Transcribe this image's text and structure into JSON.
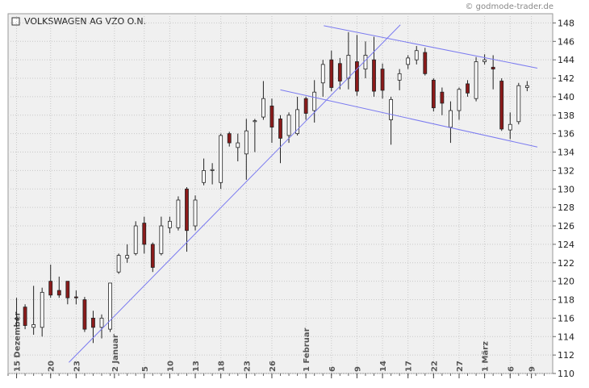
{
  "chart_data": {
    "type": "candlestick",
    "title": "VOLKSWAGEN AG VZO O.N.",
    "source": "© godmode-trader.de",
    "ohlc": [
      [
        116,
        118.2,
        115,
        116
      ],
      [
        117.2,
        117.5,
        114.8,
        115.2
      ],
      [
        115,
        119.5,
        114.2,
        115.3
      ],
      [
        115,
        119.3,
        114,
        118.8
      ],
      [
        120,
        121.8,
        118.2,
        118.5
      ],
      [
        119,
        120.5,
        118.2,
        118.5
      ],
      [
        120,
        120,
        117.5,
        118.2
      ],
      [
        118.3,
        119,
        117.5,
        118.2
      ],
      [
        118,
        118.3,
        114.5,
        114.8
      ],
      [
        116,
        116.8,
        113.3,
        115
      ],
      [
        115,
        116.4,
        113.8,
        116
      ],
      [
        114.8,
        119.8,
        114.5,
        119.8
      ],
      [
        121,
        123,
        120.8,
        122.8
      ],
      [
        122.5,
        124,
        122,
        122.8
      ],
      [
        123,
        126.5,
        122.8,
        126
      ],
      [
        126.3,
        127,
        123,
        124
      ],
      [
        124,
        124.2,
        121,
        121.5
      ],
      [
        123,
        127,
        122.8,
        126
      ],
      [
        125.8,
        127,
        125.2,
        126.5
      ],
      [
        125.8,
        129.2,
        125.5,
        128.8
      ],
      [
        130,
        130.2,
        123.2,
        125.5
      ],
      [
        126,
        129.3,
        125.5,
        128.8
      ],
      [
        130.7,
        133.3,
        130.4,
        132
      ],
      [
        132,
        132.8,
        130.5,
        132.1
      ],
      [
        130.7,
        136,
        130,
        135.8
      ],
      [
        136,
        136.2,
        134.6,
        135
      ],
      [
        134.5,
        136,
        133,
        135
      ],
      [
        133.8,
        137.6,
        131,
        136.3
      ],
      [
        137.3,
        137.6,
        134,
        137.4
      ],
      [
        137.8,
        141.7,
        137.5,
        139.8
      ],
      [
        139,
        139.8,
        135,
        136.7
      ],
      [
        137.6,
        138,
        132.8,
        135.5
      ],
      [
        135.8,
        138.3,
        135,
        138
      ],
      [
        136,
        140,
        135.8,
        138.6
      ],
      [
        139.8,
        140,
        137.5,
        138.2
      ],
      [
        138.5,
        141.8,
        137.2,
        140.5
      ],
      [
        141.5,
        144,
        140,
        143.5
      ],
      [
        144,
        145,
        140.6,
        141
      ],
      [
        143.6,
        144.2,
        140.8,
        141.7
      ],
      [
        142,
        147,
        140.8,
        144.5
      ],
      [
        143.8,
        146.7,
        140.1,
        140.6
      ],
      [
        143,
        146,
        142,
        144.5
      ],
      [
        144,
        146.5,
        140,
        140.6
      ],
      [
        143,
        143.6,
        139.8,
        140.7
      ],
      [
        137.5,
        140,
        134.8,
        139.7
      ],
      [
        141.8,
        143,
        140.7,
        142.5
      ],
      [
        143.5,
        144.5,
        143,
        144.2
      ],
      [
        144,
        145.5,
        143.5,
        145
      ],
      [
        144.8,
        145.3,
        142.3,
        142.5
      ],
      [
        141.8,
        142,
        138.4,
        138.8
      ],
      [
        140.5,
        141,
        138,
        139.3
      ],
      [
        136.7,
        139.5,
        135,
        138.5
      ],
      [
        138.5,
        141,
        137.5,
        140.8
      ],
      [
        141.4,
        141.8,
        140,
        140.4
      ],
      [
        139.8,
        144.3,
        139.5,
        143.8
      ],
      [
        143.8,
        144.6,
        143.5,
        144
      ],
      [
        143.2,
        144.5,
        140.8,
        143
      ],
      [
        141.7,
        142,
        136.3,
        136.5
      ],
      [
        136.4,
        138.3,
        135.4,
        137
      ],
      [
        137.3,
        141.5,
        137,
        141.2
      ],
      [
        141,
        141.7,
        140.6,
        141.2
      ]
    ],
    "up_color": "#ffffff",
    "down_color": "#8b1a1a",
    "trend_color": "#7b7bf0",
    "trendlines": [
      {
        "x": [
          6.15,
          45.1
        ],
        "y": [
          111.2,
          147.8
        ]
      },
      {
        "x": [
          36.1,
          61.2
        ],
        "y": [
          147.7,
          143.1
        ]
      },
      {
        "x": [
          31,
          61.2
        ],
        "y": [
          140.75,
          134.55
        ]
      }
    ],
    "xlim": [
      -1,
      63
    ],
    "xticks": [
      {
        "value": 0,
        "label": "15 Dezember"
      },
      {
        "value": 4,
        "label": "20"
      },
      {
        "value": 7,
        "label": "23"
      },
      {
        "value": 11.5,
        "label": "2 Januar"
      },
      {
        "value": 15,
        "label": "5"
      },
      {
        "value": 18,
        "label": "10"
      },
      {
        "value": 21,
        "label": "13"
      },
      {
        "value": 24,
        "label": "18"
      },
      {
        "value": 27,
        "label": "23"
      },
      {
        "value": 30,
        "label": "26"
      },
      {
        "value": 34,
        "label": "1 Februar"
      },
      {
        "value": 37,
        "label": "6"
      },
      {
        "value": 40,
        "label": "9"
      },
      {
        "value": 43,
        "label": "14"
      },
      {
        "value": 46,
        "label": "17"
      },
      {
        "value": 49,
        "label": "22"
      },
      {
        "value": 52,
        "label": "27"
      },
      {
        "value": 55,
        "label": "1 März"
      },
      {
        "value": 58,
        "label": "6"
      },
      {
        "value": 60.5,
        "label": "9"
      }
    ],
    "ylim": [
      110,
      149
    ],
    "yticks": [
      110,
      112,
      114,
      116,
      118,
      120,
      122,
      124,
      126,
      128,
      130,
      132,
      134,
      136,
      138,
      140,
      142,
      144,
      146,
      148
    ],
    "grid": true
  }
}
